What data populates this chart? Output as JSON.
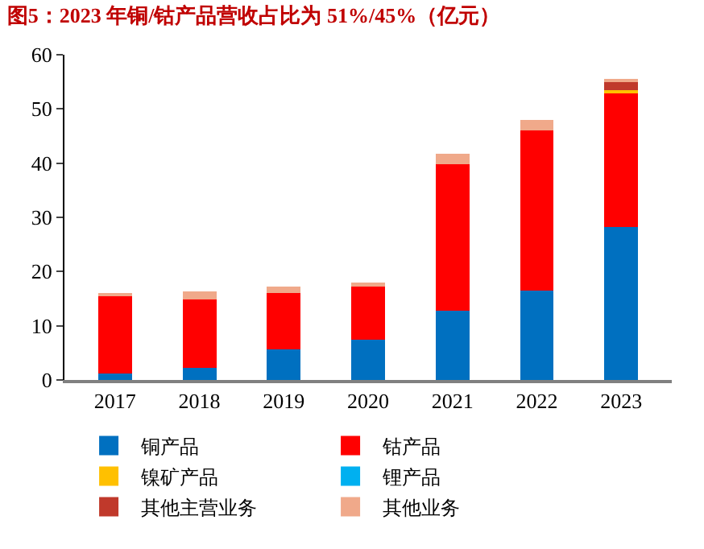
{
  "chart_data": {
    "type": "bar",
    "title": "图5：2023 年铜/钴产品营收占比为 51%/45%（亿元）",
    "stacked": true,
    "categories": [
      "2017",
      "2018",
      "2019",
      "2020",
      "2021",
      "2022",
      "2023"
    ],
    "series": [
      {
        "name": "铜产品",
        "color": "#0070c0",
        "values": [
          1.2,
          2.2,
          5.7,
          7.4,
          12.8,
          16.5,
          28.2
        ]
      },
      {
        "name": "钴产品",
        "color": "#ff0000",
        "values": [
          14.5,
          12.7,
          10.4,
          10.0,
          27.0,
          29.6,
          24.7
        ]
      },
      {
        "name": "镍矿产品",
        "color": "#ffc000",
        "values": [
          null,
          null,
          null,
          null,
          null,
          null,
          0.5
        ]
      },
      {
        "name": "锂产品",
        "color": "#00b0f0",
        "values": [
          null,
          null,
          null,
          null,
          null,
          null,
          null
        ]
      },
      {
        "name": "其他主营业务",
        "color": "#c0392b",
        "values": [
          null,
          null,
          null,
          null,
          null,
          null,
          1.6
        ]
      },
      {
        "name": "其他业务",
        "color": "#f0a98a",
        "values": [
          0.3,
          1.5,
          1.1,
          0.5,
          2.0,
          1.9,
          0.4
        ]
      }
    ],
    "ylim": [
      0,
      60
    ],
    "yticks": [
      0,
      10,
      20,
      30,
      40,
      50,
      60
    ],
    "grid": false,
    "legend": "bottom"
  }
}
